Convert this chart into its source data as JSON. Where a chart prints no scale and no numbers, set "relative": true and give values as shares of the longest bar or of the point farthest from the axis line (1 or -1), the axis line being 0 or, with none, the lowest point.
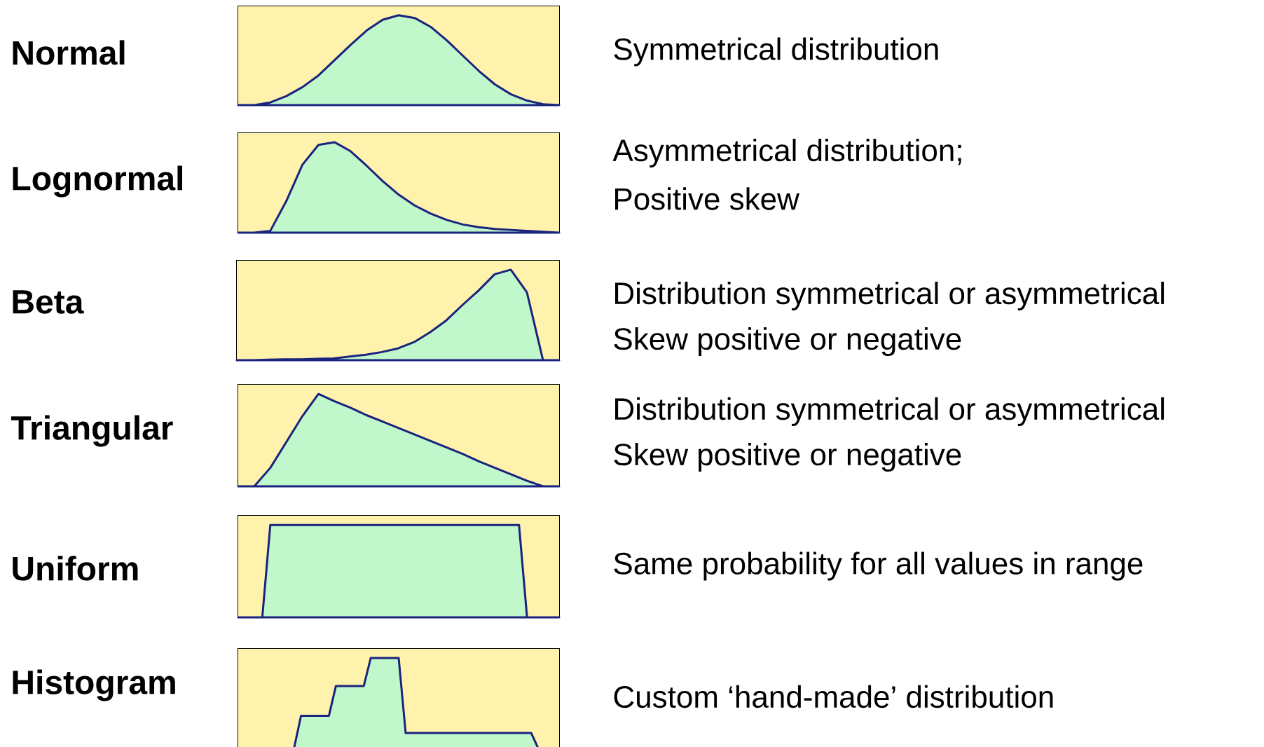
{
  "chart_data": [
    {
      "type": "area",
      "title": "Normal",
      "annotations": [
        "Symmetrical distribution"
      ],
      "relative": true,
      "color": "#c0f8cc",
      "categories": [
        null,
        null,
        null,
        null,
        null,
        null,
        null,
        null,
        null,
        null,
        null,
        null,
        null,
        null,
        null,
        null,
        null,
        null,
        null,
        null,
        null
      ],
      "values": [
        0,
        0,
        0.03,
        0.1,
        0.2,
        0.33,
        0.5,
        0.67,
        0.83,
        0.95,
        1,
        0.97,
        0.87,
        0.72,
        0.55,
        0.38,
        0.23,
        0.12,
        0.05,
        0.01,
        0
      ]
    },
    {
      "type": "area",
      "title": "Lognormal",
      "annotations": [
        "Asymmetrical distribution;",
        "Positive skew"
      ],
      "relative": true,
      "color": "#c0f8cc",
      "categories": [
        null,
        null,
        null,
        null,
        null,
        null,
        null,
        null,
        null,
        null,
        null,
        null,
        null,
        null,
        null,
        null,
        null,
        null,
        null,
        null,
        null
      ],
      "values": [
        0,
        0,
        0.02,
        0.35,
        0.75,
        0.97,
        1,
        0.9,
        0.74,
        0.57,
        0.42,
        0.3,
        0.21,
        0.14,
        0.09,
        0.06,
        0.04,
        0.03,
        0.02,
        0.01,
        0
      ]
    },
    {
      "type": "area",
      "title": "Beta",
      "annotations": [
        "Distribution symmetrical or asymmetrical",
        "Skew positive or negative"
      ],
      "relative": true,
      "color": "#c0f8cc",
      "categories": [
        null,
        null,
        null,
        null,
        null,
        null,
        null,
        null,
        null,
        null,
        null,
        null,
        null,
        null,
        null,
        null,
        null,
        null,
        null,
        null,
        null
      ],
      "values": [
        0,
        0,
        0.005,
        0.01,
        0.01,
        0.015,
        0.02,
        0.04,
        0.06,
        0.09,
        0.13,
        0.2,
        0.31,
        0.44,
        0.61,
        0.77,
        0.95,
        1,
        0.75,
        0,
        0
      ]
    },
    {
      "type": "area",
      "title": "Triangular",
      "annotations": [
        "Distribution symmetrical or asymmetrical",
        "Skew positive or negative"
      ],
      "relative": true,
      "color": "#c0f8cc",
      "categories": [
        null,
        null,
        null,
        null,
        null,
        null,
        null,
        null,
        null,
        null,
        null,
        null,
        null,
        null,
        null,
        null,
        null,
        null,
        null,
        null,
        null
      ],
      "values": [
        0,
        0,
        0.2,
        0.48,
        0.76,
        1,
        0.92,
        0.85,
        0.77,
        0.7,
        0.63,
        0.56,
        0.49,
        0.42,
        0.35,
        0.27,
        0.2,
        0.13,
        0.06,
        0,
        0
      ]
    },
    {
      "type": "area",
      "title": "Uniform",
      "annotations": [
        "Same probability for all values in range"
      ],
      "relative": true,
      "color": "#c0f8cc",
      "categories": [
        null,
        null,
        null,
        null,
        null,
        null,
        null,
        null,
        null,
        null,
        null,
        null,
        null,
        null,
        null,
        null,
        null,
        null,
        null,
        null,
        null,
        null,
        null,
        null,
        null,
        null,
        null,
        null,
        null,
        null,
        null,
        null,
        null,
        null,
        null,
        null,
        null,
        null,
        null,
        null,
        null
      ],
      "values": [
        0,
        0,
        0,
        0,
        1,
        1,
        1,
        1,
        1,
        1,
        1,
        1,
        1,
        1,
        1,
        1,
        1,
        1,
        1,
        1,
        1,
        1,
        1,
        1,
        1,
        1,
        1,
        1,
        1,
        1,
        1,
        1,
        1,
        1,
        1,
        1,
        0,
        0,
        0,
        0,
        0
      ]
    },
    {
      "type": "area",
      "title": "Histogram",
      "annotations": [
        "Custom ‘hand-made’ distribution"
      ],
      "relative": true,
      "color": "#c0f8cc",
      "categories": [
        null,
        null,
        null,
        null,
        null,
        null,
        null,
        null,
        null,
        null,
        null,
        null,
        null,
        null,
        null,
        null,
        null,
        null,
        null,
        null,
        null,
        null,
        null,
        null,
        null,
        null,
        null,
        null,
        null,
        null,
        null,
        null,
        null,
        null,
        null,
        null,
        null,
        null,
        null,
        null,
        null,
        null,
        null,
        null,
        null,
        null,
        null
      ],
      "values": [
        0,
        0,
        0,
        0,
        0,
        0,
        0,
        0,
        0,
        0.36,
        0.36,
        0.36,
        0.36,
        0.36,
        0.69,
        0.69,
        0.69,
        0.69,
        0.69,
        1,
        1,
        1,
        1,
        1,
        0.17,
        0.17,
        0.17,
        0.17,
        0.17,
        0.17,
        0.17,
        0.17,
        0.17,
        0.17,
        0.17,
        0.17,
        0.17,
        0.17,
        0.17,
        0.17,
        0.17,
        0.17,
        0.17,
        0,
        0,
        0,
        0
      ]
    }
  ]
}
